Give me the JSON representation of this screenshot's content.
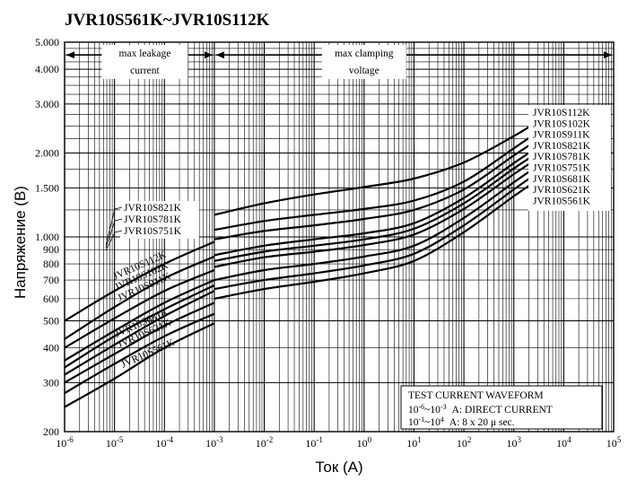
{
  "chart_data": {
    "type": "line",
    "title": "JVR10S561K~JVR10S112K",
    "xlabel": "Ток (А)",
    "ylabel": "Напряжение (В)",
    "xscale": "log",
    "yscale": "log",
    "xlim": [
      1e-06,
      100000.0
    ],
    "ylim": [
      200,
      5000
    ],
    "grid": true,
    "x_tick_labels": [
      {
        "x": 1e-06,
        "base": "10",
        "exp": "-6"
      },
      {
        "x": 1e-05,
        "base": "10",
        "exp": "-5"
      },
      {
        "x": 0.0001,
        "base": "10",
        "exp": "-4"
      },
      {
        "x": 0.001,
        "base": "10",
        "exp": "-3"
      },
      {
        "x": 0.01,
        "base": "10",
        "exp": "-2"
      },
      {
        "x": 0.1,
        "base": "10",
        "exp": "-1"
      },
      {
        "x": 1,
        "base": "10",
        "exp": "0"
      },
      {
        "x": 10,
        "base": "10",
        "exp": "1"
      },
      {
        "x": 100,
        "base": "10",
        "exp": "2"
      },
      {
        "x": 1000,
        "base": "10",
        "exp": "3"
      },
      {
        "x": 10000,
        "base": "10",
        "exp": "4"
      },
      {
        "x": 100000,
        "base": "10",
        "exp": "5"
      }
    ],
    "y_tick_labels": [
      {
        "y": 5000,
        "label": "5.000"
      },
      {
        "y": 4000,
        "label": "4.000"
      },
      {
        "y": 3000,
        "label": "3.000"
      },
      {
        "y": 2000,
        "label": "2.000"
      },
      {
        "y": 1500,
        "label": "1.500"
      },
      {
        "y": 1000,
        "label": "1.000"
      },
      {
        "y": 900,
        "label": "900"
      },
      {
        "y": 800,
        "label": "800"
      },
      {
        "y": 700,
        "label": "700"
      },
      {
        "y": 600,
        "label": "600"
      },
      {
        "y": 500,
        "label": "500"
      },
      {
        "y": 400,
        "label": "400"
      },
      {
        "y": 300,
        "label": "300"
      },
      {
        "y": 200,
        "label": "200"
      }
    ],
    "regions": [
      {
        "label_line1": "max leakage",
        "label_line2": "current",
        "x_from": 1e-06,
        "x_to": 0.001
      },
      {
        "label_line1": "max clamping",
        "label_line2": "voltage",
        "x_from": 0.001,
        "x_to": 100000.0
      }
    ],
    "series": [
      {
        "name": "JVR10S112K",
        "leakage": [
          [
            1e-06,
            500
          ],
          [
            1e-05,
            640
          ],
          [
            0.0001,
            800
          ],
          [
            0.001,
            960
          ]
        ],
        "clamping": [
          [
            0.001,
            1200
          ],
          [
            0.01,
            1320
          ],
          [
            0.1,
            1420
          ],
          [
            1,
            1510
          ],
          [
            10,
            1620
          ],
          [
            100,
            1850
          ],
          [
            1000,
            2300
          ],
          [
            3000,
            2600
          ]
        ]
      },
      {
        "name": "JVR10S102K",
        "leakage": [
          [
            1e-06,
            430
          ],
          [
            1e-05,
            560
          ],
          [
            0.0001,
            710
          ],
          [
            0.001,
            850
          ]
        ],
        "clamping": [
          [
            0.001,
            1060
          ],
          [
            0.01,
            1140
          ],
          [
            0.1,
            1200
          ],
          [
            1,
            1260
          ],
          [
            10,
            1350
          ],
          [
            100,
            1580
          ],
          [
            1000,
            2080
          ],
          [
            3000,
            2380
          ]
        ]
      },
      {
        "name": "JVR10S911K",
        "leakage": [
          [
            1e-06,
            400
          ],
          [
            1e-05,
            510
          ],
          [
            0.0001,
            640
          ],
          [
            0.001,
            760
          ]
        ],
        "clamping": [
          [
            0.001,
            980
          ],
          [
            0.01,
            1050
          ],
          [
            0.1,
            1100
          ],
          [
            1,
            1160
          ],
          [
            10,
            1250
          ],
          [
            100,
            1480
          ],
          [
            1000,
            1960
          ],
          [
            3000,
            2230
          ]
        ]
      },
      {
        "name": "JVR10S821K",
        "leakage": [
          [
            1e-06,
            360
          ],
          [
            1e-05,
            460
          ],
          [
            0.0001,
            580
          ],
          [
            0.001,
            700
          ]
        ],
        "clamping": [
          [
            0.001,
            860
          ],
          [
            0.01,
            930
          ],
          [
            0.1,
            980
          ],
          [
            1,
            1030
          ],
          [
            10,
            1120
          ],
          [
            100,
            1380
          ],
          [
            1000,
            1840
          ],
          [
            3000,
            2100
          ]
        ]
      },
      {
        "name": "JVR10S781K",
        "leakage": [
          [
            1e-06,
            340
          ],
          [
            1e-05,
            440
          ],
          [
            0.0001,
            550
          ],
          [
            0.001,
            670
          ]
        ],
        "clamping": [
          [
            0.001,
            820
          ],
          [
            0.01,
            885
          ],
          [
            0.1,
            930
          ],
          [
            1,
            980
          ],
          [
            10,
            1070
          ],
          [
            100,
            1320
          ],
          [
            1000,
            1760
          ],
          [
            3000,
            2000
          ]
        ]
      },
      {
        "name": "JVR10S751K",
        "leakage": [
          [
            1e-06,
            320
          ],
          [
            1e-05,
            410
          ],
          [
            0.0001,
            520
          ],
          [
            0.001,
            640
          ]
        ],
        "clamping": [
          [
            0.001,
            780
          ],
          [
            0.01,
            845
          ],
          [
            0.1,
            885
          ],
          [
            1,
            935
          ],
          [
            10,
            1020
          ],
          [
            100,
            1260
          ],
          [
            1000,
            1680
          ],
          [
            3000,
            1910
          ]
        ]
      },
      {
        "name": "JVR10S681K",
        "leakage": [
          [
            1e-06,
            300
          ],
          [
            1e-05,
            380
          ],
          [
            0.0001,
            480
          ],
          [
            0.001,
            580
          ]
        ],
        "clamping": [
          [
            0.001,
            700
          ],
          [
            0.01,
            760
          ],
          [
            0.1,
            800
          ],
          [
            1,
            850
          ],
          [
            10,
            930
          ],
          [
            100,
            1170
          ],
          [
            1000,
            1570
          ],
          [
            3000,
            1800
          ]
        ]
      },
      {
        "name": "JVR10S621K",
        "leakage": [
          [
            1e-06,
            275
          ],
          [
            1e-05,
            350
          ],
          [
            0.0001,
            440
          ],
          [
            0.001,
            530
          ]
        ],
        "clamping": [
          [
            0.001,
            650
          ],
          [
            0.01,
            700
          ],
          [
            0.1,
            740
          ],
          [
            1,
            790
          ],
          [
            10,
            870
          ],
          [
            100,
            1100
          ],
          [
            1000,
            1480
          ],
          [
            3000,
            1700
          ]
        ]
      },
      {
        "name": "JVR10S561K",
        "leakage": [
          [
            1e-06,
            245
          ],
          [
            1e-05,
            310
          ],
          [
            0.0001,
            400
          ],
          [
            0.001,
            490
          ]
        ],
        "clamping": [
          [
            0.001,
            600
          ],
          [
            0.01,
            650
          ],
          [
            0.1,
            690
          ],
          [
            1,
            740
          ],
          [
            10,
            820
          ],
          [
            100,
            1040
          ],
          [
            1000,
            1400
          ],
          [
            3000,
            1600
          ]
        ]
      }
    ],
    "right_labels": [
      "JVR10S112K",
      "JVR10S102K",
      "JVR10S911K",
      "JVR10S821K",
      "JVR10S781K",
      "JVR10S751K",
      "JVR10S681K",
      "JVR10S621K",
      "JVR10S561K"
    ],
    "left_labels_straight": [
      "JVR10S821K",
      "JVR10S781K",
      "JVR10S751K"
    ],
    "left_labels_rotated": [
      "JVR10S112K",
      "JVR10S102K",
      "JVR10S911K",
      "JVR10S681K",
      "JVR10S621K",
      "JVR10S561K"
    ],
    "waveform_box": {
      "title": "TEST CURRENT WAVEFORM",
      "line1_range": {
        "a": "10",
        "ae": "-6",
        "sep": "~10",
        "be": "-3",
        "text": "A: DIRECT CURRENT"
      },
      "line2_range": {
        "a": "10",
        "ae": "-1",
        "sep": "~10",
        "be": "4",
        "text": "A: 8 x 20 μ sec."
      }
    }
  }
}
